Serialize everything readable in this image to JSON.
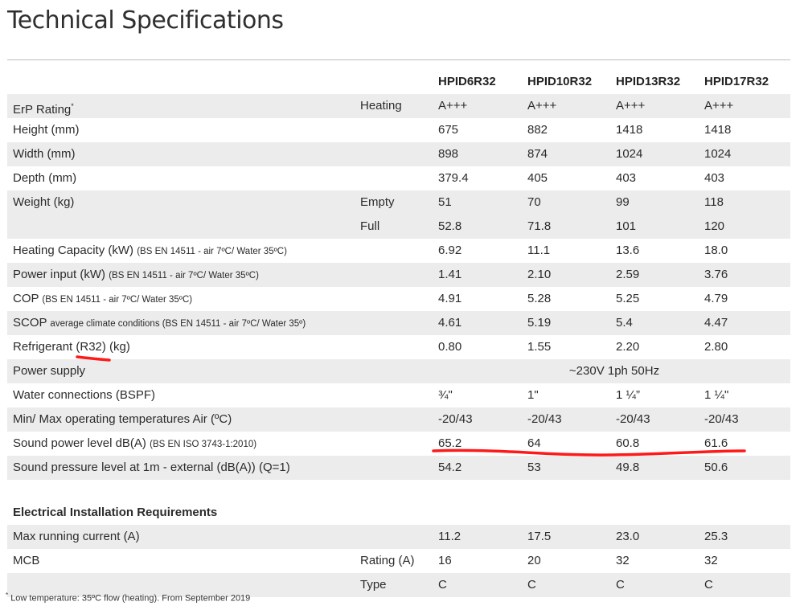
{
  "title": "Technical Specifications",
  "columns": [
    "HPID6R32",
    "HPID10R32",
    "HPID13R32",
    "HPID17R32"
  ],
  "rows": {
    "erp": {
      "label": "ErP Rating",
      "mark": "*",
      "sub": "Heating",
      "values": [
        "A+++",
        "A+++",
        "A+++",
        "A+++"
      ]
    },
    "height": {
      "label": "Height (mm)",
      "values": [
        "675",
        "882",
        "1418",
        "1418"
      ]
    },
    "width": {
      "label": "Width (mm)",
      "values": [
        "898",
        "874",
        "1024",
        "1024"
      ]
    },
    "depth": {
      "label": "Depth (mm)",
      "values": [
        "379.4",
        "405",
        "403",
        "403"
      ]
    },
    "weight": {
      "label": "Weight (kg)",
      "sub1": "Empty",
      "values1": [
        "51",
        "70",
        "99",
        "118"
      ],
      "sub2": "Full",
      "values2": [
        "52.8",
        "71.8",
        "101",
        "120"
      ]
    },
    "heating_capacity": {
      "label": "Heating Capacity (kW)",
      "note": "(BS EN 14511 - air 7ºC/ Water 35ºC)",
      "values": [
        "6.92",
        "11.1",
        "13.6",
        "18.0"
      ]
    },
    "power_input": {
      "label": "Power input (kW)",
      "note": "(BS EN 14511 - air 7ºC/ Water 35ºC)",
      "values": [
        "1.41",
        "2.10",
        "2.59",
        "3.76"
      ]
    },
    "cop": {
      "label": "COP",
      "note": "(BS EN 14511 - air 7ºC/ Water 35ºC)",
      "values": [
        "4.91",
        "5.28",
        "5.25",
        "4.79"
      ]
    },
    "scop": {
      "label": "SCOP",
      "note": "average climate conditions (BS EN 14511 - air 7ºC/ Water 35º)",
      "values": [
        "4.61",
        "5.19",
        "5.4",
        "4.47"
      ]
    },
    "refrigerant": {
      "label": "Refrigerant (R32) (kg)",
      "values": [
        "0.80",
        "1.55",
        "2.20",
        "2.80"
      ]
    },
    "power_supply": {
      "label": "Power supply",
      "value": "~230V 1ph 50Hz"
    },
    "water_connections": {
      "label": "Water connections (BSPF)",
      "values": [
        "¾\"",
        "1\"",
        "1 ¼”",
        "1 ¼\""
      ]
    },
    "operating_temps": {
      "label": "Min/ Max operating temperatures Air (ºC)",
      "values": [
        "-20/43",
        "-20/43",
        "-20/43",
        "-20/43"
      ]
    },
    "sound_power": {
      "label": "Sound power level dB(A)",
      "note": "(BS EN ISO 3743-1:2010)",
      "values": [
        "65.2",
        "64",
        "60.8",
        "61.6"
      ]
    },
    "sound_pressure": {
      "label": "Sound pressure level at 1m - external (dB(A)) (Q=1)",
      "values": [
        "54.2",
        "53",
        "49.8",
        "50.6"
      ]
    }
  },
  "electrical": {
    "title": "Electrical Installation Requirements",
    "max_current": {
      "label": "Max running current (A)",
      "values": [
        "11.2",
        "17.5",
        "23.0",
        "25.3"
      ]
    },
    "mcb": {
      "label": "MCB",
      "sub1": "Rating (A)",
      "values1": [
        "16",
        "20",
        "32",
        "32"
      ],
      "sub2": "Type",
      "values2": [
        "C",
        "C",
        "C",
        "C"
      ]
    }
  },
  "footnote": {
    "mark": "*",
    "text": "Low temperature: 35ºC flow (heating). From September 2019"
  },
  "annotation_color": "#ff1a1a"
}
